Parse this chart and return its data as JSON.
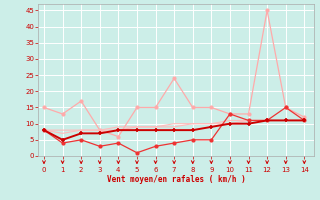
{
  "x": [
    0,
    1,
    2,
    3,
    4,
    5,
    6,
    7,
    8,
    9,
    10,
    11,
    12,
    13,
    14
  ],
  "line_dark_red": [
    8,
    5,
    7,
    7,
    8,
    8,
    8,
    8,
    8,
    9,
    10,
    10,
    11,
    11,
    11
  ],
  "line_med_red": [
    8,
    4,
    5,
    3,
    4,
    1,
    3,
    4,
    5,
    5,
    13,
    11,
    11,
    15,
    11
  ],
  "line_pink1": [
    15,
    13,
    17,
    8,
    6,
    15,
    15,
    24,
    15,
    15,
    13,
    13,
    45,
    15,
    12
  ],
  "line_pink2": [
    8,
    8,
    8,
    8,
    9,
    9,
    9,
    10,
    10,
    10,
    11,
    11,
    11,
    11,
    11
  ],
  "line_pink3": [
    8,
    7,
    8,
    8,
    8,
    9,
    9,
    9,
    10,
    10,
    10,
    11,
    11,
    11,
    11
  ],
  "xlabel": "Vent moyen/en rafales ( km/h )",
  "ylim": [
    0,
    47
  ],
  "xlim": [
    -0.3,
    14.5
  ],
  "yticks": [
    0,
    5,
    10,
    15,
    20,
    25,
    30,
    35,
    40,
    45
  ],
  "xticks": [
    0,
    1,
    2,
    3,
    4,
    5,
    6,
    7,
    8,
    9,
    10,
    11,
    12,
    13,
    14
  ],
  "bg_color": "#cceee8",
  "grid_color": "#bbddda",
  "color_dark": "#cc0000",
  "color_med": "#ee3333",
  "color_pink1": "#ffaaaa",
  "color_pink2": "#ffbbbb",
  "color_pink3": "#ffbbbb",
  "arrow_color": "#cc0000",
  "tick_color": "#cc0000",
  "label_color": "#cc0000"
}
